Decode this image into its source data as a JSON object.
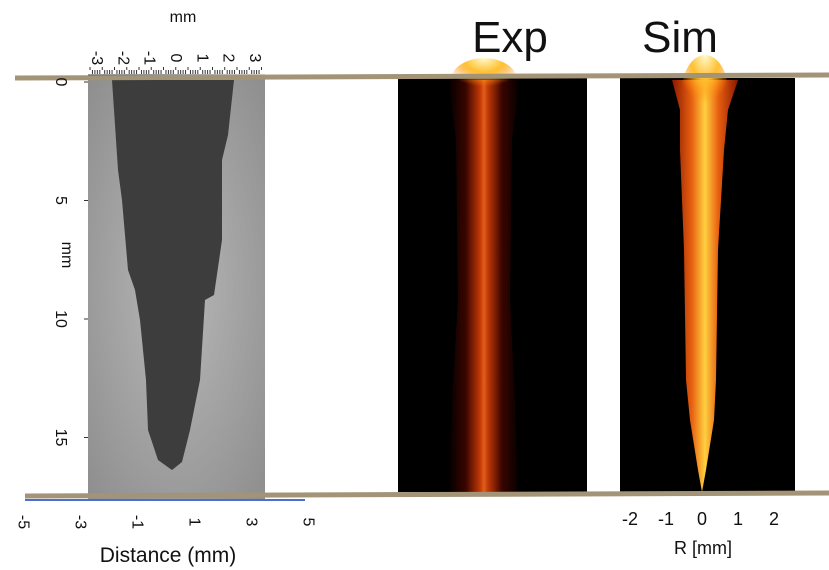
{
  "left_panel": {
    "top_axis": {
      "label": "mm",
      "ticks": [
        -3,
        -2,
        -1,
        0,
        1,
        2,
        3
      ]
    },
    "left_axis": {
      "label": "mm",
      "ticks": [
        0,
        5,
        10,
        15
      ]
    },
    "bottom_axis": {
      "label": "Distance (mm)",
      "ticks": [
        -5,
        -3,
        -1,
        1,
        3,
        5
      ]
    }
  },
  "exp_panel": {
    "title": "Exp"
  },
  "sim_panel": {
    "title": "Sim",
    "bottom_axis": {
      "label": "R [mm]",
      "ticks": [
        -2,
        -1,
        0,
        1,
        2
      ]
    }
  }
}
